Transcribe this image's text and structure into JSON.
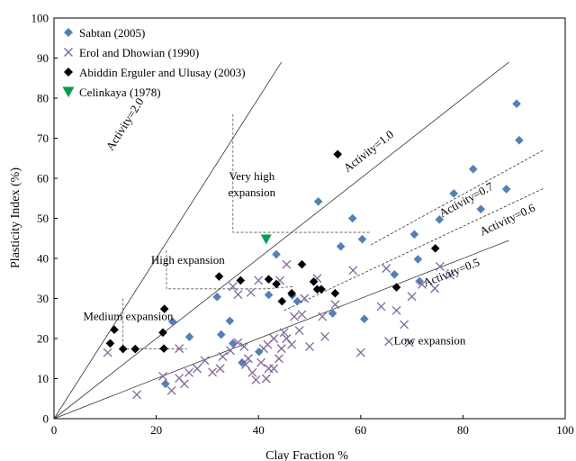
{
  "chart_data": {
    "type": "scatter",
    "title": "",
    "xlabel": "Clay Fraction  %",
    "ylabel": "Plasticity Index (%)",
    "xlim": [
      0,
      100
    ],
    "ylim": [
      0,
      100
    ],
    "xticks": [
      0,
      20,
      40,
      60,
      80,
      100
    ],
    "yticks": [
      0,
      10,
      20,
      30,
      40,
      50,
      60,
      70,
      80,
      90,
      100
    ],
    "grid": false,
    "legend_position": "top-left",
    "series": [
      {
        "name": "Sabtan (2005)",
        "marker": "diamond",
        "color": "#4f81bd",
        "points": [
          [
            21.8,
            8.7
          ],
          [
            23.2,
            24.2
          ],
          [
            26.5,
            20.4
          ],
          [
            31.9,
            30.4
          ],
          [
            32.7,
            21.0
          ],
          [
            34.4,
            24.4
          ],
          [
            35.0,
            18.8
          ],
          [
            36.8,
            14.0
          ],
          [
            40.1,
            16.7
          ],
          [
            43.5,
            41.0
          ],
          [
            46.6,
            30.8
          ],
          [
            47.6,
            29.3
          ],
          [
            51.7,
            54.2
          ],
          [
            54.5,
            26.3
          ],
          [
            56.1,
            43.0
          ],
          [
            58.4,
            50.0
          ],
          [
            60.3,
            44.8
          ],
          [
            60.7,
            24.9
          ],
          [
            66.6,
            36.0
          ],
          [
            70.5,
            46.0
          ],
          [
            71.5,
            34.3
          ],
          [
            75.4,
            49.7
          ],
          [
            78.2,
            56.2
          ],
          [
            82.0,
            62.3
          ],
          [
            83.5,
            52.3
          ],
          [
            88.5,
            57.3
          ],
          [
            90.5,
            78.6
          ],
          [
            91.0,
            69.5
          ],
          [
            42.0,
            30.9
          ],
          [
            71.2,
            39.8
          ]
        ]
      },
      {
        "name": "Erol and Dhowian (1990)",
        "marker": "x",
        "color": "#8064a2",
        "points": [
          [
            10.5,
            16.5
          ],
          [
            16.2,
            6.0
          ],
          [
            21.3,
            10.6
          ],
          [
            23.0,
            7.0
          ],
          [
            24.5,
            10.1
          ],
          [
            25.5,
            8.7
          ],
          [
            26.4,
            11.5
          ],
          [
            24.5,
            17.5
          ],
          [
            28.0,
            12.5
          ],
          [
            29.5,
            14.5
          ],
          [
            31.0,
            11.6
          ],
          [
            32.5,
            12.5
          ],
          [
            33.0,
            15.5
          ],
          [
            34.5,
            17.0
          ],
          [
            36.0,
            19.0
          ],
          [
            37.5,
            13.5
          ],
          [
            38.0,
            15.0
          ],
          [
            38.8,
            11.5
          ],
          [
            39.5,
            9.7
          ],
          [
            40.5,
            14.0
          ],
          [
            41.0,
            17.5
          ],
          [
            41.5,
            10.0
          ],
          [
            42.0,
            12.5
          ],
          [
            43.0,
            20.0
          ],
          [
            44.0,
            15.0
          ],
          [
            44.5,
            17.5
          ],
          [
            45.0,
            21.5
          ],
          [
            45.5,
            20.0
          ],
          [
            46.5,
            18.5
          ],
          [
            47.0,
            25.5
          ],
          [
            48.0,
            22.0
          ],
          [
            48.5,
            26.0
          ],
          [
            49.0,
            30.0
          ],
          [
            50.0,
            18.0
          ],
          [
            43.0,
            12.5
          ],
          [
            35.0,
            33.0
          ],
          [
            40.0,
            34.5
          ],
          [
            38.5,
            31.5
          ],
          [
            44.2,
            34.5
          ],
          [
            45.5,
            38.5
          ],
          [
            51.5,
            35.0
          ],
          [
            52.5,
            25.5
          ],
          [
            53.0,
            20.5
          ],
          [
            55.0,
            28.5
          ],
          [
            58.5,
            37.0
          ],
          [
            60.0,
            16.5
          ],
          [
            64.0,
            28.0
          ],
          [
            65.0,
            37.5
          ],
          [
            65.5,
            19.3
          ],
          [
            67.0,
            27.0
          ],
          [
            68.5,
            23.5
          ],
          [
            69.5,
            19.0
          ],
          [
            70.0,
            30.5
          ],
          [
            72.0,
            33.5
          ],
          [
            74.5,
            32.5
          ],
          [
            75.5,
            38.0
          ],
          [
            77.5,
            35.8
          ],
          [
            37.2,
            18.0
          ],
          [
            36.0,
            31.0
          ],
          [
            41.8,
            18.5
          ]
        ]
      },
      {
        "name": "Abiddin Erguler and Ulusay (2003)",
        "marker": "diamond",
        "color": "#000000",
        "points": [
          [
            11.0,
            18.8
          ],
          [
            11.8,
            22.2
          ],
          [
            13.5,
            17.4
          ],
          [
            15.9,
            17.4
          ],
          [
            21.3,
            21.5
          ],
          [
            21.5,
            17.5
          ],
          [
            21.6,
            27.4
          ],
          [
            32.3,
            35.5
          ],
          [
            36.5,
            34.5
          ],
          [
            42.0,
            34.8
          ],
          [
            43.5,
            33.6
          ],
          [
            46.5,
            31.3
          ],
          [
            44.6,
            29.3
          ],
          [
            48.5,
            38.5
          ],
          [
            50.8,
            34.2
          ],
          [
            51.5,
            32.3
          ],
          [
            52.3,
            32.3
          ],
          [
            55.0,
            31.3
          ],
          [
            55.5,
            66.0
          ],
          [
            67.0,
            32.8
          ],
          [
            74.6,
            42.5
          ]
        ]
      },
      {
        "name": "Celinkaya (1978)",
        "marker": "triangle-down",
        "color": "#00a14b",
        "points": [
          [
            41.5,
            44.8
          ]
        ]
      }
    ],
    "activity_lines": [
      {
        "label": "Activity=2.0",
        "slope": 2.0,
        "x_end": 44.5,
        "style": "solid"
      },
      {
        "label": "Activity=1.0",
        "slope": 1.0,
        "x_end": 89.0,
        "style": "solid"
      },
      {
        "label": "Activity=0.7",
        "slope": 0.7,
        "x_start": 62.0,
        "x_end": 96.0,
        "style": "dashed"
      },
      {
        "label": "Activity=0.6",
        "slope": 0.6,
        "x_start": 45.0,
        "x_end": 96.0,
        "style": "dashed"
      },
      {
        "label": "Activity=0.5",
        "slope": 0.5,
        "x_end": 89.0,
        "style": "solid"
      }
    ],
    "zone_boundaries": [
      {
        "points": [
          [
            13.5,
            30.0
          ],
          [
            13.5,
            17.4
          ],
          [
            26.0,
            17.4
          ]
        ]
      },
      {
        "points": [
          [
            22.0,
            42.0
          ],
          [
            22.0,
            32.4
          ],
          [
            41.5,
            32.4
          ],
          [
            47.0,
            33.0
          ]
        ]
      },
      {
        "points": [
          [
            35.0,
            76.0
          ],
          [
            35.0,
            46.5
          ],
          [
            62.0,
            46.5
          ]
        ]
      }
    ],
    "annotations": [
      {
        "text": "Activity=2.0",
        "x": 14.5,
        "y": 73,
        "rotate": true,
        "slope": 2.0
      },
      {
        "text": "Activity=1.0",
        "x": 62,
        "y": 66,
        "rotate": true,
        "slope": 1.0
      },
      {
        "text": "Activity=0.7",
        "x": 81,
        "y": 53.8,
        "rotate": true,
        "slope": 0.7
      },
      {
        "text": "Activity=0.6",
        "x": 89,
        "y": 48.8,
        "rotate": true,
        "slope": 0.6
      },
      {
        "text": "Activity=0.5",
        "x": 78,
        "y": 35.6,
        "rotate": true,
        "slope": 0.5
      },
      {
        "text": "Very high",
        "x": 38.7,
        "y": 59.5
      },
      {
        "text": "expansion",
        "x": 38.7,
        "y": 55.5
      },
      {
        "text": "High expansion",
        "x": 26.2,
        "y": 38.6
      },
      {
        "text": "Medium expansion",
        "x": 14.5,
        "y": 24.6
      },
      {
        "text": "Low expansion",
        "x": 73.5,
        "y": 18.5
      }
    ]
  }
}
